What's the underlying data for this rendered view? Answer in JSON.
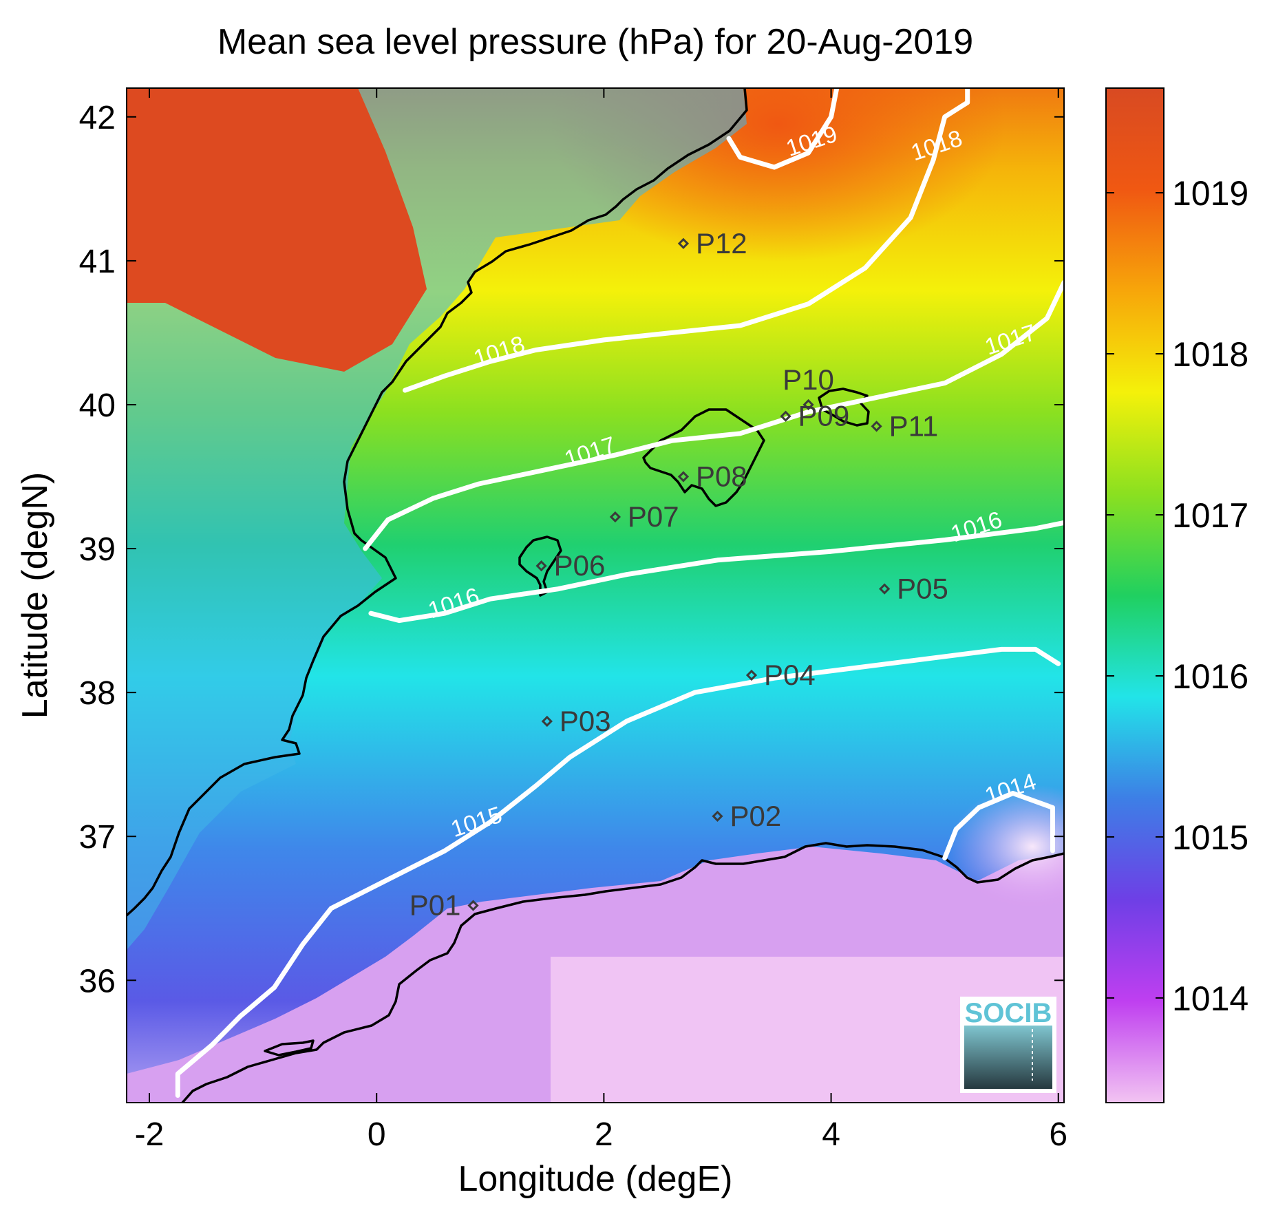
{
  "chart_data": {
    "type": "heatmap",
    "title": "Mean sea level pressure (hPa) for 20-Aug-2019",
    "xlabel": "Longitude (degE)",
    "ylabel": "Latitude (degN)",
    "xlim": [
      -2.2,
      6.05
    ],
    "ylim": [
      35.15,
      42.2
    ],
    "x_ticks": [
      -2,
      0,
      2,
      4,
      6
    ],
    "x_tick_labels": [
      "-2",
      "0",
      "2",
      "4",
      "6"
    ],
    "y_ticks": [
      36,
      37,
      38,
      39,
      40,
      41,
      42
    ],
    "y_tick_labels": [
      "36",
      "37",
      "38",
      "39",
      "40",
      "41",
      "42"
    ],
    "colorbar": {
      "range": [
        1013.35,
        1019.65
      ],
      "ticks": [
        1014,
        1015,
        1016,
        1017,
        1018,
        1019
      ],
      "tick_labels": [
        "1014",
        "1015",
        "1016",
        "1017",
        "1018",
        "1019"
      ],
      "colormap": [
        "#f2c4f2",
        "#bf3ff0",
        "#6e3fe6",
        "#3d7fe6",
        "#22e4e8",
        "#20d060",
        "#8be020",
        "#f4f10a",
        "#f7a60a",
        "#f05812",
        "#d84a22"
      ]
    },
    "contours": [
      {
        "level": "1014",
        "points": [
          [
            5.0,
            36.85
          ],
          [
            5.1,
            37.05
          ],
          [
            5.3,
            37.2
          ],
          [
            5.6,
            37.3
          ],
          [
            5.95,
            37.2
          ],
          [
            5.95,
            36.9
          ]
        ],
        "label_at": [
          5.6,
          37.28
        ]
      },
      {
        "level": "1015",
        "points": [
          [
            -1.75,
            35.2
          ],
          [
            -1.75,
            35.35
          ],
          [
            -1.45,
            35.55
          ],
          [
            -1.2,
            35.75
          ],
          [
            -0.9,
            35.95
          ],
          [
            -0.65,
            36.25
          ],
          [
            -0.4,
            36.5
          ],
          [
            0.1,
            36.7
          ],
          [
            0.6,
            36.9
          ],
          [
            1.0,
            37.1
          ],
          [
            1.4,
            37.35
          ],
          [
            1.7,
            37.55
          ],
          [
            2.2,
            37.8
          ],
          [
            2.8,
            38.0
          ],
          [
            3.5,
            38.1
          ],
          [
            4.5,
            38.2
          ],
          [
            5.5,
            38.3
          ],
          [
            5.8,
            38.3
          ],
          [
            6.0,
            38.2
          ]
        ],
        "label_at": [
          0.9,
          37.05
        ]
      },
      {
        "level": "1016",
        "points": [
          [
            -0.05,
            38.55
          ],
          [
            0.2,
            38.5
          ],
          [
            0.6,
            38.55
          ],
          [
            1.0,
            38.65
          ],
          [
            1.6,
            38.72
          ],
          [
            2.2,
            38.82
          ],
          [
            3.0,
            38.92
          ],
          [
            4.0,
            38.98
          ],
          [
            5.0,
            39.06
          ],
          [
            5.8,
            39.14
          ],
          [
            6.05,
            39.18
          ]
        ],
        "label_at": [
          0.7,
          38.57
        ]
      },
      {
        "level": "1016",
        "points": [],
        "label_at": [
          5.3,
          39.1
        ]
      },
      {
        "level": "1017",
        "points": [
          [
            -0.1,
            39.0
          ],
          [
            0.1,
            39.2
          ],
          [
            0.5,
            39.35
          ],
          [
            0.9,
            39.45
          ],
          [
            1.5,
            39.55
          ],
          [
            2.1,
            39.65
          ],
          [
            2.6,
            39.75
          ],
          [
            3.2,
            39.8
          ],
          [
            3.8,
            39.95
          ],
          [
            4.4,
            40.05
          ],
          [
            5.0,
            40.15
          ],
          [
            5.5,
            40.35
          ],
          [
            5.9,
            40.6
          ],
          [
            6.05,
            40.85
          ]
        ],
        "label_at": [
          1.9,
          39.62
        ]
      },
      {
        "level": "1017",
        "points": [],
        "label_at": [
          5.6,
          40.4
        ]
      },
      {
        "level": "1018",
        "points": [
          [
            0.25,
            40.1
          ],
          [
            0.6,
            40.2
          ],
          [
            1.0,
            40.3
          ],
          [
            1.4,
            40.38
          ],
          [
            2.0,
            40.45
          ],
          [
            2.6,
            40.5
          ],
          [
            3.2,
            40.55
          ],
          [
            3.8,
            40.7
          ],
          [
            4.3,
            40.95
          ],
          [
            4.7,
            41.3
          ],
          [
            4.9,
            41.7
          ],
          [
            5.0,
            42.0
          ],
          [
            5.2,
            42.1
          ],
          [
            5.2,
            42.2
          ]
        ],
        "label_at": [
          1.1,
          40.32
        ]
      },
      {
        "level": "1018",
        "points": [],
        "label_at": [
          4.95,
          41.75
        ]
      },
      {
        "level": "1019",
        "points": [
          [
            3.1,
            41.85
          ],
          [
            3.2,
            41.72
          ],
          [
            3.5,
            41.65
          ],
          [
            3.8,
            41.75
          ],
          [
            4.0,
            42.0
          ],
          [
            4.05,
            42.2
          ]
        ],
        "label_at": [
          3.85,
          41.78
        ]
      }
    ],
    "stations": [
      {
        "name": "P01",
        "x": 0.85,
        "y": 36.52
      },
      {
        "name": "P02",
        "x": 3.0,
        "y": 37.14
      },
      {
        "name": "P03",
        "x": 1.5,
        "y": 37.8
      },
      {
        "name": "P04",
        "x": 3.3,
        "y": 38.12
      },
      {
        "name": "P05",
        "x": 4.47,
        "y": 38.72
      },
      {
        "name": "P06",
        "x": 1.45,
        "y": 38.88
      },
      {
        "name": "P07",
        "x": 2.1,
        "y": 39.22
      },
      {
        "name": "P08",
        "x": 2.7,
        "y": 39.5
      },
      {
        "name": "P09",
        "x": 3.6,
        "y": 39.92
      },
      {
        "name": "P10",
        "x": 3.8,
        "y": 40.0
      },
      {
        "name": "P11",
        "x": 4.4,
        "y": 39.85
      },
      {
        "name": "P12",
        "x": 2.7,
        "y": 41.12
      }
    ]
  },
  "logo": {
    "text": "SOCIB"
  }
}
